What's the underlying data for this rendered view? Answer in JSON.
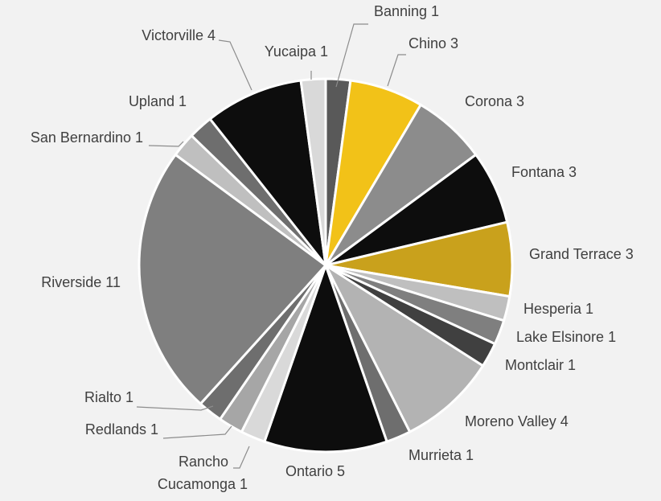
{
  "chart_data": {
    "type": "pie",
    "title": "",
    "slices": [
      {
        "name": "Banning",
        "value": 1,
        "label": "Banning 1",
        "color": "#595959"
      },
      {
        "name": "Chino",
        "value": 3,
        "label": "Chino 3",
        "color": "#f2c218"
      },
      {
        "name": "Corona",
        "value": 3,
        "label": "Corona 3",
        "color": "#8c8c8c"
      },
      {
        "name": "Fontana",
        "value": 3,
        "label": "Fontana 3",
        "color": "#0d0d0d"
      },
      {
        "name": "Grand Terrace",
        "value": 3,
        "label": "Grand Terrace 3",
        "color": "#c9a11c"
      },
      {
        "name": "Hesperia",
        "value": 1,
        "label": "Hesperia 1",
        "color": "#bfbfbf"
      },
      {
        "name": "Lake Elsinore",
        "value": 1,
        "label": "Lake Elsinore 1",
        "color": "#7f7f7f"
      },
      {
        "name": "Montclair",
        "value": 1,
        "label": "Montclair 1",
        "color": "#404040"
      },
      {
        "name": "Moreno Valley",
        "value": 4,
        "label": "Moreno Valley 4",
        "color": "#b3b3b3"
      },
      {
        "name": "Murrieta",
        "value": 1,
        "label": "Murrieta 1",
        "color": "#6e6e6e"
      },
      {
        "name": "Ontario",
        "value": 5,
        "label": "Ontario 5",
        "color": "#0d0d0d"
      },
      {
        "name": "Rancho Cucamonga",
        "value": 1,
        "label": "Rancho Cucamonga 1",
        "label_lines": [
          "Rancho",
          "Cucamonga 1"
        ],
        "color": "#d9d9d9"
      },
      {
        "name": "Redlands",
        "value": 1,
        "label": "Redlands 1",
        "color": "#a6a6a6"
      },
      {
        "name": "Rialto",
        "value": 1,
        "label": "Rialto 1",
        "color": "#6e6e6e"
      },
      {
        "name": "Riverside",
        "value": 11,
        "label": "Riverside 11",
        "color": "#7f7f7f"
      },
      {
        "name": "San Bernardino",
        "value": 1,
        "label": "San Bernardino 1",
        "color": "#bfbfbf"
      },
      {
        "name": "Upland",
        "value": 1,
        "label": "Upland 1",
        "color": "#6e6e6e"
      },
      {
        "name": "Victorville",
        "value": 4,
        "label": "Victorville 4",
        "color": "#0d0d0d"
      },
      {
        "name": "Yucaipa",
        "value": 1,
        "label": "Yucaipa 1",
        "color": "#d9d9d9"
      }
    ],
    "legend": "none",
    "data_labels": "outside with leader lines"
  }
}
